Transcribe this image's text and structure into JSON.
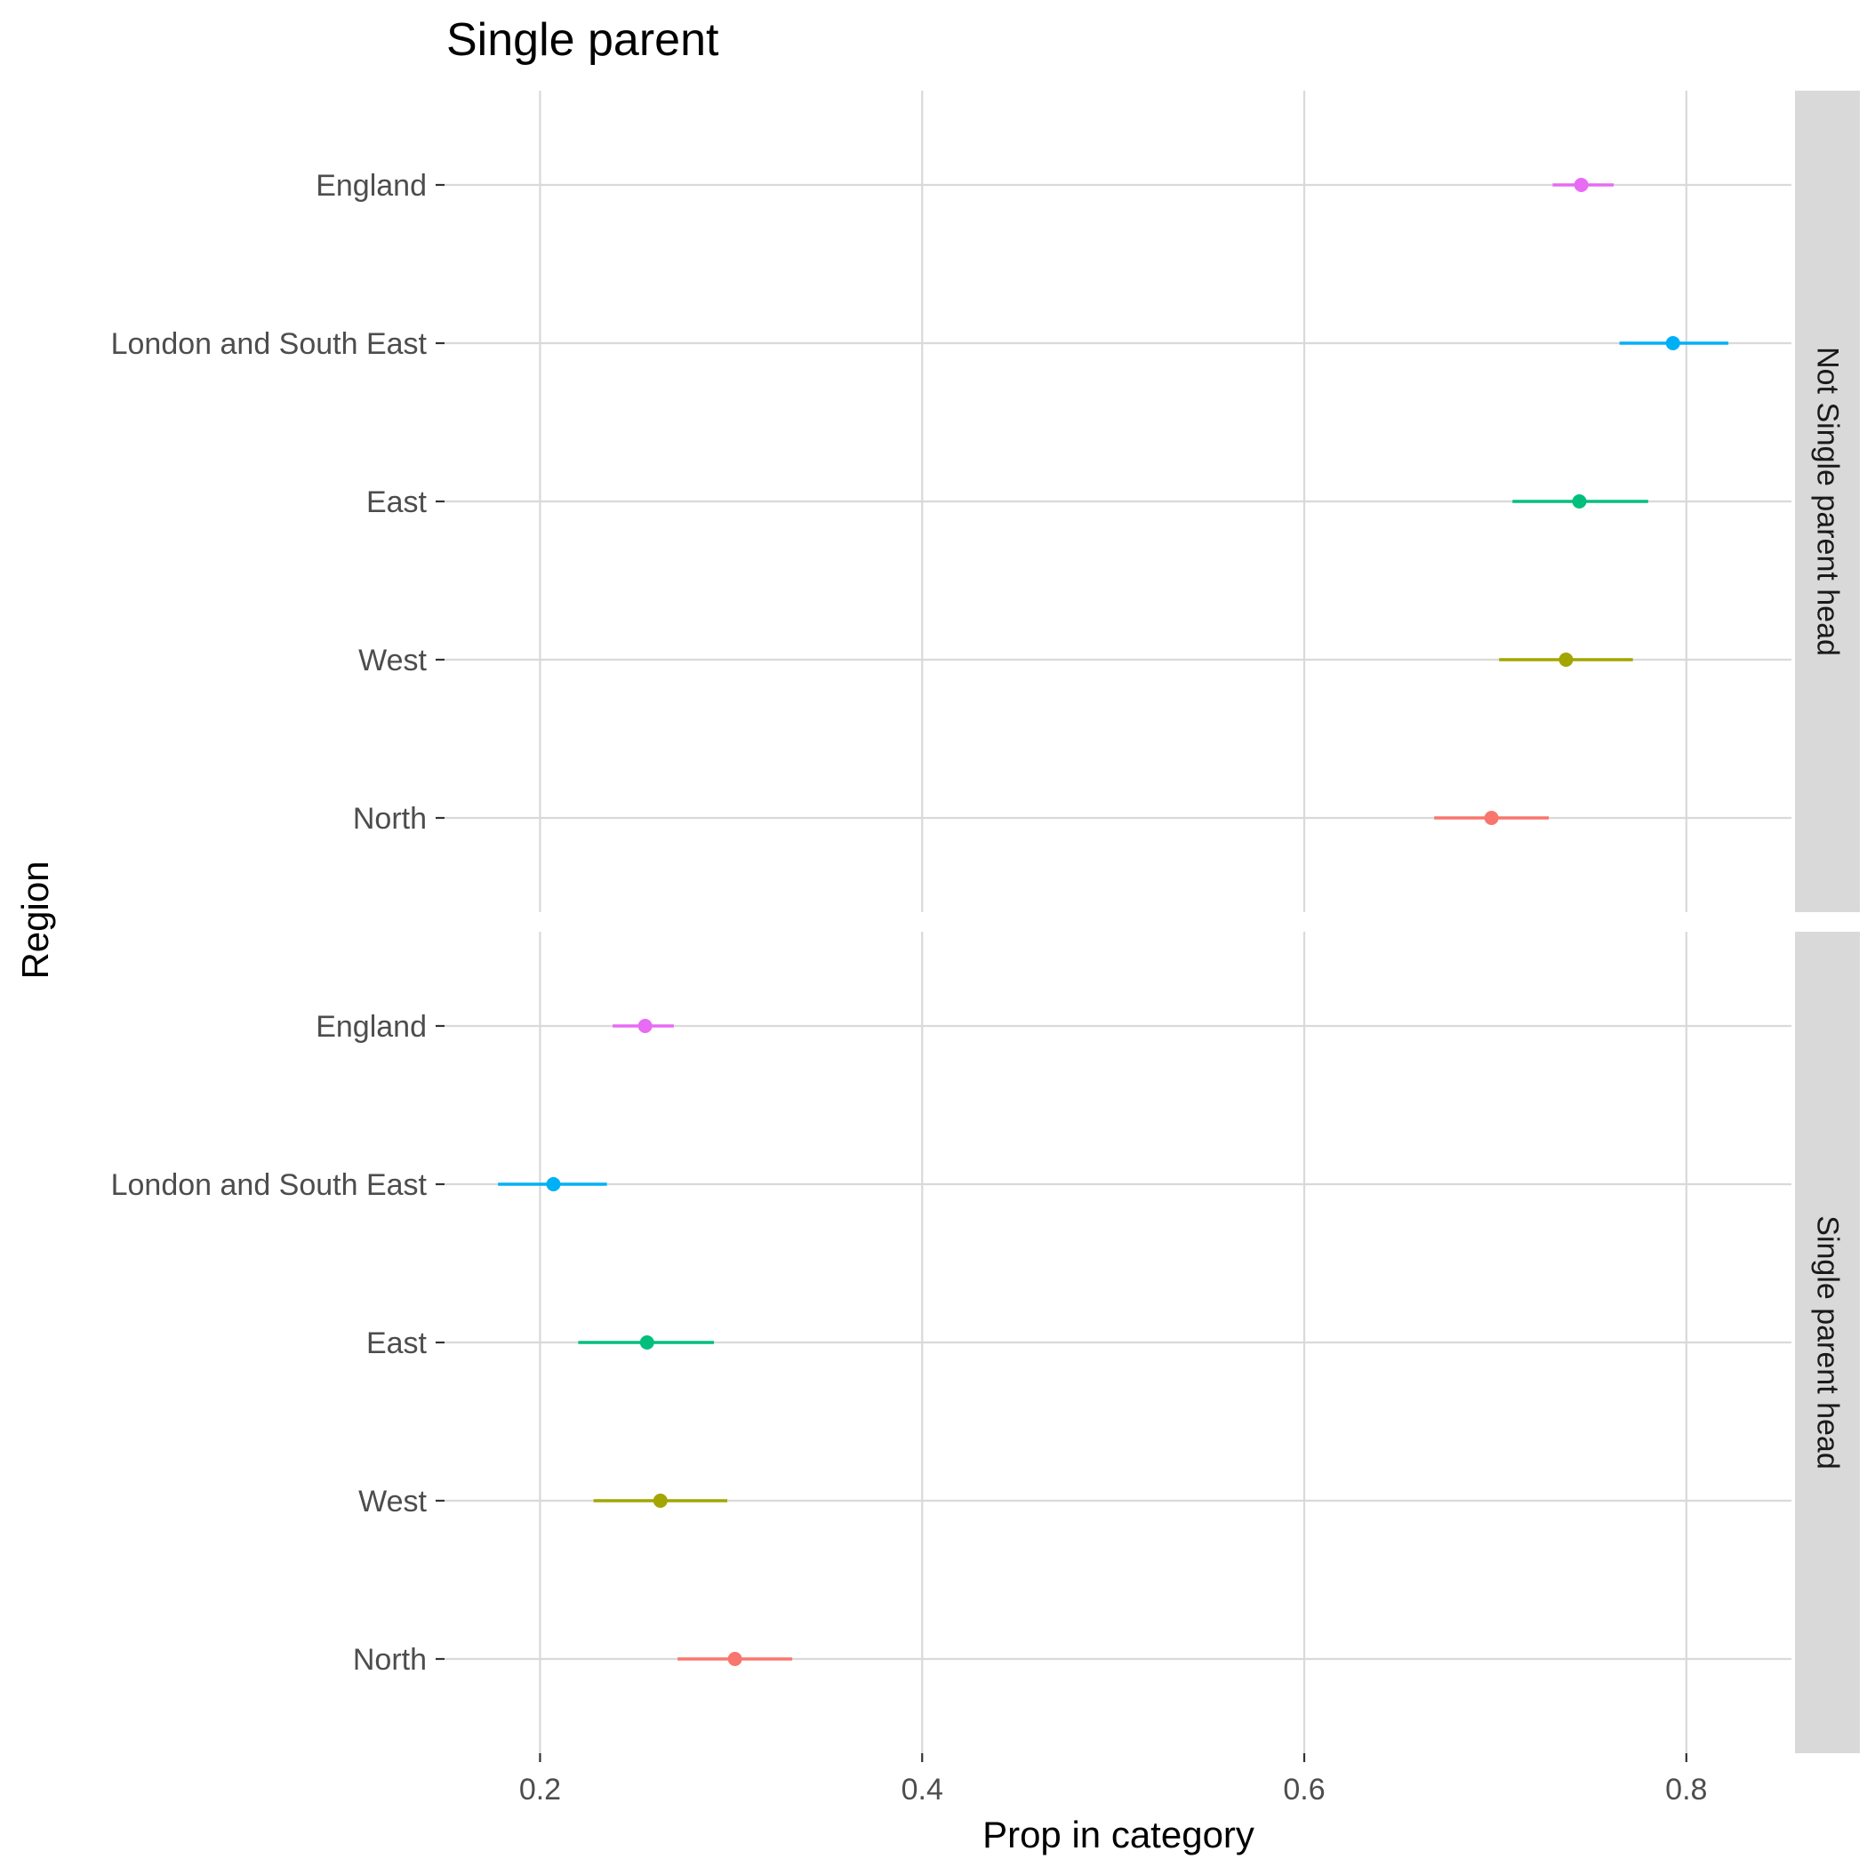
{
  "chart_data": {
    "type": "scatter",
    "title": "Single parent",
    "xlabel": "Prop in category",
    "ylabel": "Region",
    "xlim": [
      0.15,
      0.855
    ],
    "x_ticks": [
      0.2,
      0.4,
      0.6,
      0.8
    ],
    "x_tick_labels": [
      "0.2",
      "0.4",
      "0.6",
      "0.8"
    ],
    "grid": true,
    "legend": "none",
    "categories": [
      "North",
      "West",
      "East",
      "London and South East",
      "England"
    ],
    "category_colors": {
      "North": "#F8766D",
      "West": "#A3A500",
      "East": "#00BF7D",
      "London and South East": "#00B0F6",
      "England": "#E76BF3"
    },
    "panels": [
      {
        "strip": "Not Single parent head",
        "points": [
          {
            "region": "North",
            "x": 0.698,
            "lo": 0.668,
            "hi": 0.728
          },
          {
            "region": "West",
            "x": 0.737,
            "lo": 0.702,
            "hi": 0.772
          },
          {
            "region": "East",
            "x": 0.744,
            "lo": 0.709,
            "hi": 0.78
          },
          {
            "region": "London and South East",
            "x": 0.793,
            "lo": 0.765,
            "hi": 0.822
          },
          {
            "region": "England",
            "x": 0.745,
            "lo": 0.73,
            "hi": 0.762
          }
        ]
      },
      {
        "strip": "Single parent head",
        "points": [
          {
            "region": "North",
            "x": 0.302,
            "lo": 0.272,
            "hi": 0.332
          },
          {
            "region": "West",
            "x": 0.263,
            "lo": 0.228,
            "hi": 0.298
          },
          {
            "region": "East",
            "x": 0.256,
            "lo": 0.22,
            "hi": 0.291
          },
          {
            "region": "London and South East",
            "x": 0.207,
            "lo": 0.178,
            "hi": 0.235
          },
          {
            "region": "England",
            "x": 0.255,
            "lo": 0.238,
            "hi": 0.27
          }
        ]
      }
    ]
  }
}
